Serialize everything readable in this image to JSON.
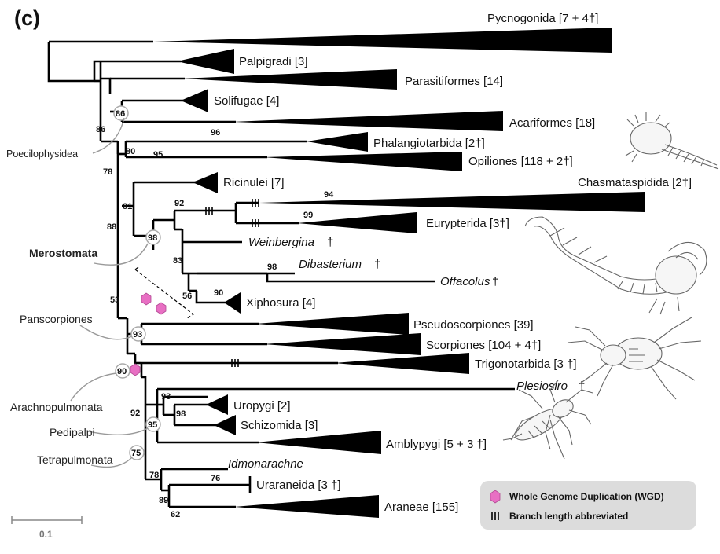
{
  "panel_label": "(c)",
  "taxa": {
    "pycnogonida": "Pycnogonida [7 + 4†]",
    "palpigradi": "Palpigradi [3]",
    "parasitiformes": "Parasitiformes [14]",
    "solifugae": "Solifugae [4]",
    "acariformes": "Acariformes [18]",
    "phalangiotarbida": "Phalangiotarbida [2†]",
    "opiliones": "Opiliones [118 + 2†]",
    "ricinulei": "Ricinulei [7]",
    "chasmataspidida": "Chasmataspidida [2†]",
    "eurypterida": "Eurypterida [3†]",
    "weinbergina": "Weinbergina",
    "dibasterium": "Dibasterium",
    "offacolus": "Offacolus",
    "xiphosura": "Xiphosura [4]",
    "pseudoscorpiones": "Pseudoscorpiones [39]",
    "scorpiones": "Scorpiones [104 + 4†]",
    "trigonotarbida": "Trigonotarbida [3 †]",
    "plesiosiro": "Plesiosiro",
    "uropygi": "Uropygi [2]",
    "schizomida": "Schizomida [3]",
    "amblypygi": "Amblypygi [5 + 3 †]",
    "idmonarachne": "Idmonarachne",
    "uraraneida": "Uraraneida [3 †]",
    "araneae": "Araneae [155]"
  },
  "dagger": "†",
  "bootstrap": {
    "b86a": "86",
    "b86b": "86",
    "b78": "78",
    "b80": "80",
    "b96": "96",
    "b95a": "95",
    "b88": "88",
    "b81": "81",
    "b92a": "92",
    "b94": "94",
    "b99": "99",
    "b98a": "98",
    "b83": "83",
    "b98b": "98",
    "b56": "56",
    "b90a": "90",
    "b53": "53",
    "b93a": "93",
    "b90b": "90",
    "b92b": "92",
    "b93b": "93",
    "b98c": "98",
    "b95b": "95",
    "b75": "75",
    "b78b": "78",
    "b76": "76",
    "b89": "89",
    "b62": "62"
  },
  "clades": {
    "poecilophysidea": "Poecilophysidea",
    "merostomata": "Merostomata",
    "panscorpiones": "Panscorpiones",
    "arachnopulmonata": "Arachnopulmonata",
    "pedipalpi": "Pedipalpi",
    "tetrapulmonata": "Tetrapulmonata"
  },
  "scale_label": "0.1",
  "legend": {
    "wgd": "Whole Genome Duplication (WGD)",
    "branch": "Branch length abbreviated"
  },
  "colors": {
    "wgd": "#e86fc3",
    "legend_bg": "#dcdcdc",
    "circle": "#aaaaaa"
  }
}
